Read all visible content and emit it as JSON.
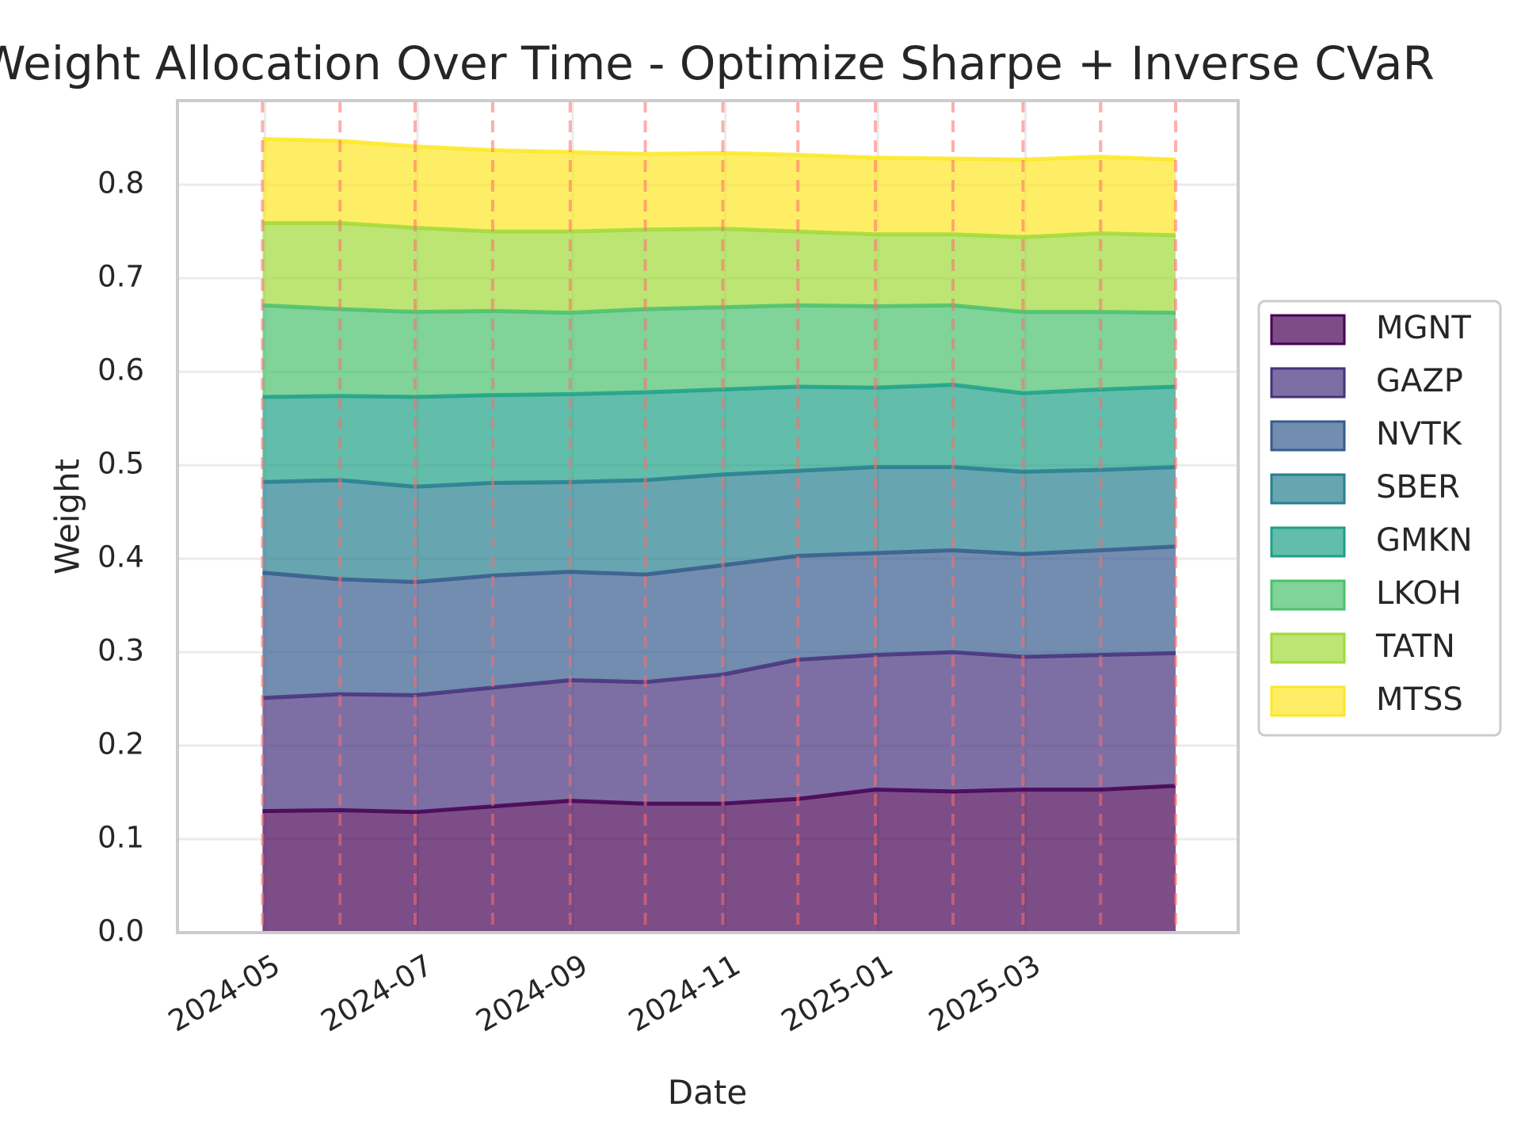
{
  "chart_data": {
    "type": "area",
    "stacked": true,
    "title": "Weight Allocation Over Time - Optimize Sharpe + Inverse CVaR",
    "xlabel": "Date",
    "ylabel": "Weight",
    "ylim": [
      0,
      0.89
    ],
    "yticks": [
      "0.0",
      "0.1",
      "0.2",
      "0.3",
      "0.4",
      "0.5",
      "0.6",
      "0.7",
      "0.8"
    ],
    "xticks": [
      "2024-05",
      "2024-07",
      "2024-09",
      "2024-11",
      "2025-01",
      "2025-03"
    ],
    "xtick_dates": [
      "2024-05-01",
      "2024-07-01",
      "2024-09-01",
      "2024-11-01",
      "2025-01-01",
      "2025-03-01"
    ],
    "xlim": [
      "2024-03-27",
      "2025-05-25"
    ],
    "grid": true,
    "legend_position": "center-right",
    "rebalance_lines_color": "#ff6b6b",
    "x": [
      "2024-04-30",
      "2024-05-31",
      "2024-06-30",
      "2024-07-31",
      "2024-08-31",
      "2024-09-30",
      "2024-10-31",
      "2024-11-30",
      "2024-12-31",
      "2025-01-31",
      "2025-02-28",
      "2025-03-31",
      "2025-04-30"
    ],
    "series": [
      {
        "name": "MGNT",
        "color": "#440154",
        "values": [
          0.13,
          0.131,
          0.129,
          0.135,
          0.141,
          0.138,
          0.138,
          0.143,
          0.153,
          0.151,
          0.153,
          0.153,
          0.157
        ]
      },
      {
        "name": "GAZP",
        "color": "#46327e",
        "values": [
          0.121,
          0.124,
          0.125,
          0.127,
          0.129,
          0.13,
          0.138,
          0.149,
          0.144,
          0.149,
          0.142,
          0.144,
          0.142
        ]
      },
      {
        "name": "NVTK",
        "color": "#365c8d",
        "values": [
          0.134,
          0.123,
          0.121,
          0.12,
          0.116,
          0.115,
          0.117,
          0.111,
          0.109,
          0.109,
          0.11,
          0.112,
          0.114
        ]
      },
      {
        "name": "SBER",
        "color": "#277f8e",
        "values": [
          0.097,
          0.106,
          0.102,
          0.099,
          0.096,
          0.101,
          0.097,
          0.091,
          0.092,
          0.089,
          0.088,
          0.086,
          0.085
        ]
      },
      {
        "name": "GMKN",
        "color": "#1fa187",
        "values": [
          0.091,
          0.09,
          0.096,
          0.094,
          0.094,
          0.094,
          0.091,
          0.09,
          0.085,
          0.088,
          0.084,
          0.086,
          0.086
        ]
      },
      {
        "name": "LKOH",
        "color": "#4ac16d",
        "values": [
          0.098,
          0.093,
          0.091,
          0.09,
          0.087,
          0.089,
          0.088,
          0.087,
          0.087,
          0.085,
          0.087,
          0.083,
          0.079
        ]
      },
      {
        "name": "TATN",
        "color": "#a0da39",
        "values": [
          0.088,
          0.092,
          0.09,
          0.085,
          0.087,
          0.085,
          0.084,
          0.079,
          0.077,
          0.076,
          0.08,
          0.084,
          0.083
        ]
      },
      {
        "name": "MTSS",
        "color": "#fde725",
        "values": [
          0.09,
          0.088,
          0.087,
          0.087,
          0.085,
          0.081,
          0.081,
          0.082,
          0.082,
          0.081,
          0.083,
          0.082,
          0.081
        ]
      }
    ]
  }
}
